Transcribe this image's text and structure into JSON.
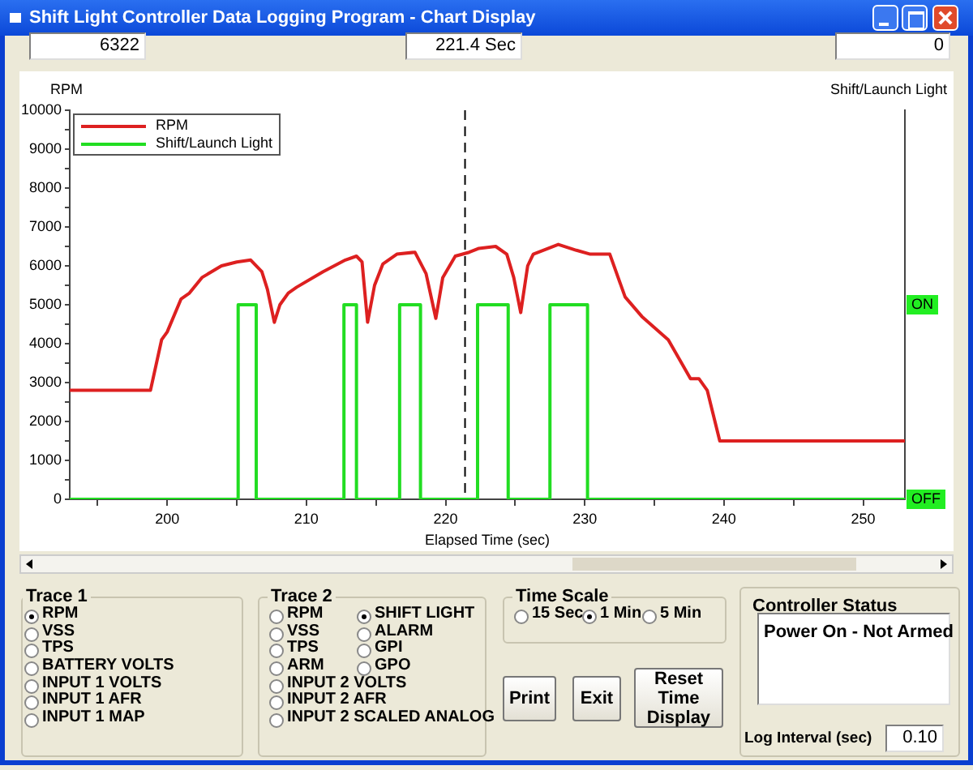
{
  "chart_data": {
    "type": "line",
    "title": "Shift Light Controller Data Logging Program - Chart Display",
    "xlabel": "Elapsed Time (sec)",
    "ylabel": "RPM",
    "series": [
      {
        "name": "RPM",
        "color": "#dd2020",
        "x": [
          193,
          198.8,
          199.6,
          200,
          201,
          201.6,
          202.5,
          203.9,
          205,
          206,
          206.8,
          207.2,
          207.7,
          208.1,
          208.7,
          209.3,
          211.2,
          212.8,
          213.6,
          214,
          214.4,
          214.9,
          215.5,
          216.5,
          217.8,
          218.6,
          219.3,
          219.8,
          220.7,
          221.7,
          222.4,
          223.6,
          224.4,
          224.9,
          225.4,
          225.9,
          226.3,
          228.1,
          229.4,
          230.4,
          231.8,
          232.9,
          234.1,
          236,
          237.6,
          238.2,
          238.8,
          239.7,
          253
        ],
        "values": [
          2800,
          2800,
          4100,
          4300,
          5150,
          5300,
          5700,
          6000,
          6100,
          6150,
          5850,
          5400,
          4550,
          5000,
          5300,
          5450,
          5850,
          6150,
          6250,
          6100,
          4550,
          5500,
          6050,
          6300,
          6350,
          5800,
          4650,
          5700,
          6250,
          6350,
          6450,
          6500,
          6300,
          5700,
          4800,
          6000,
          6300,
          6550,
          6400,
          6300,
          6300,
          5200,
          4700,
          4100,
          3100,
          3100,
          2800,
          1500,
          1500
        ]
      },
      {
        "name": "Shift/Launch Light",
        "color": "#22dd22",
        "x": [
          193,
          205.1,
          205.1,
          206.4,
          206.4,
          212.7,
          212.7,
          213.6,
          213.6,
          216.7,
          216.7,
          218.2,
          218.2,
          222.3,
          222.3,
          224.5,
          224.5,
          227.5,
          227.5,
          230.2,
          230.2,
          253
        ],
        "values": [
          0,
          0,
          5000,
          5000,
          0,
          0,
          5000,
          5000,
          0,
          0,
          5000,
          5000,
          0,
          0,
          5000,
          5000,
          0,
          0,
          5000,
          5000,
          0,
          0
        ]
      }
    ],
    "xlim": [
      193,
      253
    ],
    "xticks": [
      {
        "value": 195,
        "label": null
      },
      200,
      {
        "value": 205,
        "label": null
      },
      210,
      {
        "value": 215,
        "label": null
      },
      220,
      {
        "value": 225,
        "label": null
      },
      230,
      {
        "value": 235,
        "label": null
      },
      240,
      {
        "value": 245,
        "label": null
      },
      250
    ],
    "ylim": [
      0,
      10000
    ],
    "yticks": [
      0,
      {
        "value": 500,
        "label": null
      },
      1000,
      {
        "value": 1500,
        "label": null
      },
      2000,
      {
        "value": 2500,
        "label": null
      },
      3000,
      {
        "value": 3500,
        "label": null
      },
      4000,
      {
        "value": 4500,
        "label": null
      },
      5000,
      {
        "value": 5500,
        "label": null
      },
      6000,
      {
        "value": 6500,
        "label": null
      },
      7000,
      {
        "value": 7500,
        "label": null
      },
      8000,
      {
        "value": 8500,
        "label": null
      },
      9000,
      {
        "value": 9500,
        "label": null
      },
      10000
    ],
    "ref_lines": [
      {
        "axis": "x",
        "value": 221.4,
        "color": "#000000",
        "line_style": "dashed"
      }
    ],
    "grid": false,
    "legend": "top left",
    "marker": "none",
    "line_style": "solid",
    "annotations": [
      "6322",
      "221.4 Sec",
      "0",
      "Trace 1",
      "RPM",
      "VSS",
      "TPS",
      "BATTERY VOLTS",
      "INPUT 1 VOLTS",
      "INPUT 1 AFR",
      "INPUT 1 MAP",
      "Trace 2",
      "RPM",
      "SHIFT LIGHT",
      "VSS",
      "ALARM",
      "TPS",
      "GPI",
      "ARM",
      "GPO",
      "INPUT 2 VOLTS",
      "INPUT 2 AFR",
      "INPUT 2 SCALED ANALOG",
      "Time Scale",
      "15 Sec",
      "1 Min",
      "5 Min",
      "Print",
      "Exit",
      "Reset Time Display",
      "Controller Status",
      "Power On - Not Armed",
      "Log Interval (sec)",
      "0.10",
      "Shift/Launch Light",
      "ON",
      "OFF"
    ]
  }
}
